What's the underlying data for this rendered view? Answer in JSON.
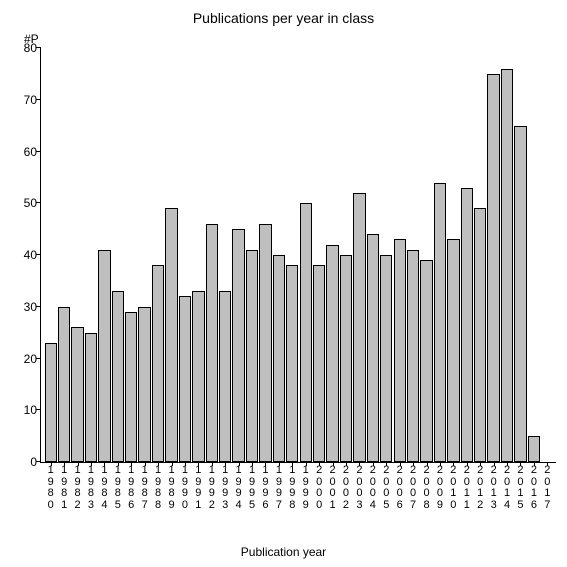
{
  "chart": {
    "type": "bar",
    "title": "Publications per year in class",
    "title_fontsize": 14,
    "xlabel": "Publication year",
    "ylabel": "#P",
    "label_fontsize": 12,
    "ylim": [
      0,
      80
    ],
    "ytick_step": 10,
    "yticks": [
      0,
      10,
      20,
      30,
      40,
      50,
      60,
      70,
      80
    ],
    "categories": [
      "1980",
      "1981",
      "1982",
      "1983",
      "1984",
      "1985",
      "1986",
      "1987",
      "1988",
      "1989",
      "1990",
      "1991",
      "1992",
      "1993",
      "1994",
      "1995",
      "1996",
      "1997",
      "1998",
      "1999",
      "2000",
      "2001",
      "2002",
      "2003",
      "2004",
      "2005",
      "2006",
      "2007",
      "2008",
      "2009",
      "2010",
      "2011",
      "2012",
      "2013",
      "2014",
      "2015",
      "2016",
      "2017"
    ],
    "values": [
      23,
      30,
      26,
      25,
      41,
      33,
      29,
      30,
      38,
      49,
      32,
      33,
      46,
      33,
      45,
      41,
      46,
      40,
      38,
      50,
      38,
      42,
      40,
      52,
      44,
      40,
      43,
      41,
      39,
      54,
      43,
      53,
      49,
      75,
      76,
      65,
      5,
      0
    ],
    "bar_color": "#bfbfbf",
    "bar_border_color": "#000000",
    "axis_color": "#000000",
    "background_color": "#ffffff",
    "tick_fontsize": 12,
    "xtick_fontsize": 11,
    "bar_width": 0.92
  }
}
